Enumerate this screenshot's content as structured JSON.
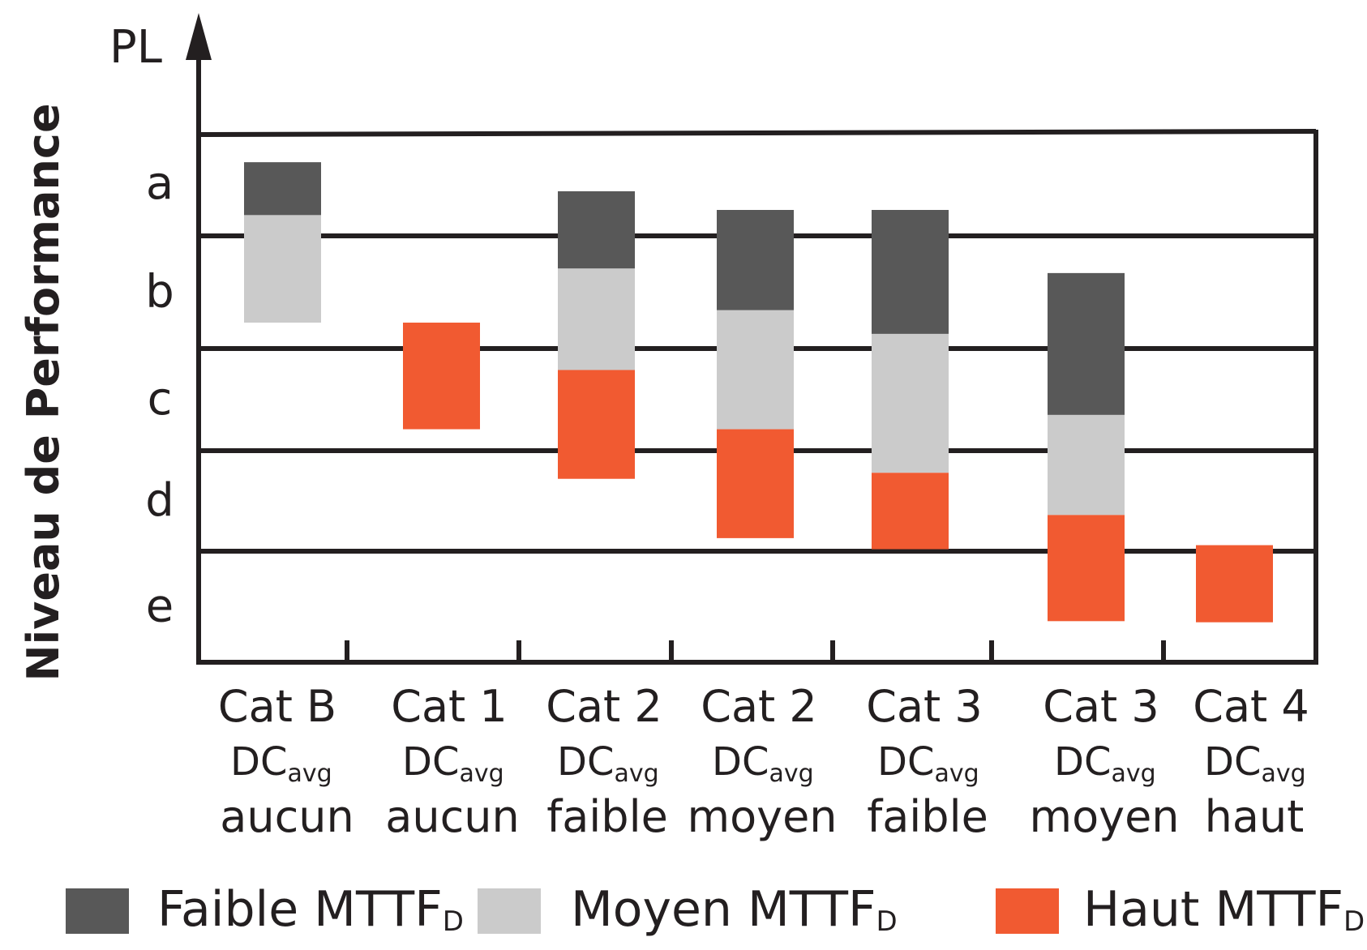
{
  "chart_data": {
    "type": "bar",
    "subtype": "floating-stacked",
    "ylabel": "Niveau de Performance",
    "yaxis_title": "PL",
    "levels": [
      "e",
      "d",
      "c",
      "b",
      "a"
    ],
    "ylim": [
      0,
      5
    ],
    "grid": true,
    "legend_position": "bottom",
    "categories": [
      {
        "cat": "Cat B",
        "dc": "DC",
        "dc_sub": "avg",
        "dc_level": "aucun"
      },
      {
        "cat": "Cat 1",
        "dc": "DC",
        "dc_sub": "avg",
        "dc_level": "aucun"
      },
      {
        "cat": "Cat 2",
        "dc": "DC",
        "dc_sub": "avg",
        "dc_level": "faible"
      },
      {
        "cat": "Cat 2",
        "dc": "DC",
        "dc_sub": "avg",
        "dc_level": "moyen"
      },
      {
        "cat": "Cat 3",
        "dc": "DC",
        "dc_sub": "avg",
        "dc_level": "faible"
      },
      {
        "cat": "Cat 3",
        "dc": "DC",
        "dc_sub": "avg",
        "dc_level": "moyen"
      },
      {
        "cat": "Cat 4",
        "dc": "DC",
        "dc_sub": "avg",
        "dc_level": "haut"
      }
    ],
    "series": [
      {
        "name": "Faible MTTF",
        "name_sub": "D",
        "color": "#585858",
        "ranges": [
          [
            4.2,
            4.71
          ],
          null,
          [
            3.71,
            4.43
          ],
          [
            3.34,
            4.25
          ],
          [
            3.13,
            4.25
          ],
          [
            2.35,
            3.67
          ],
          null
        ]
      },
      {
        "name": "Moyen MTTF",
        "name_sub": "D",
        "color": "#cbcbcb",
        "ranges": [
          [
            3.23,
            4.2
          ],
          null,
          [
            2.79,
            3.71
          ],
          [
            2.21,
            3.34
          ],
          [
            1.78,
            3.13
          ],
          [
            1.36,
            2.35
          ],
          null
        ]
      },
      {
        "name": "Haut MTTF",
        "name_sub": "D",
        "color": "#f15a31",
        "ranges": [
          null,
          [
            2.21,
            3.23
          ],
          [
            1.72,
            2.79
          ],
          [
            1.13,
            2.21
          ],
          [
            1.02,
            1.78
          ],
          [
            0.37,
            1.36
          ],
          [
            0.36,
            1.06
          ]
        ]
      }
    ]
  }
}
